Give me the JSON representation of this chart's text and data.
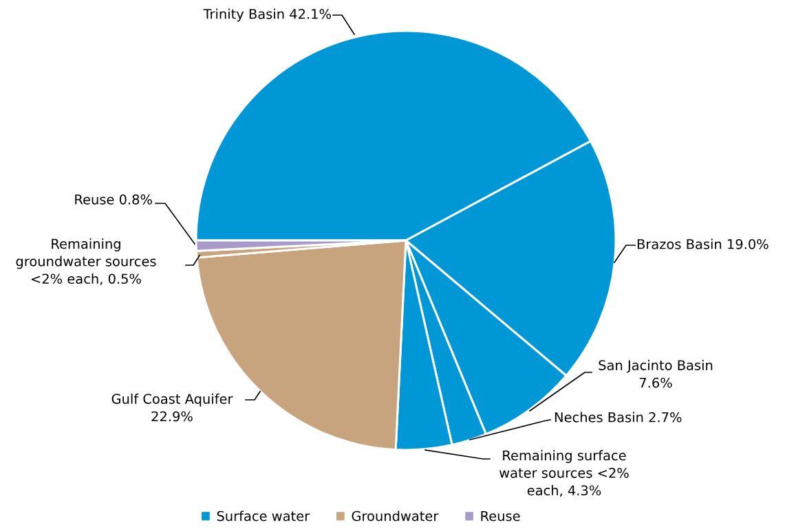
{
  "chart_data": {
    "type": "pie",
    "categories": [
      "Trinity Basin",
      "Brazos Basin",
      "San Jacinto Basin",
      "Neches Basin",
      "Remaining surface water sources <2% each",
      "Gulf Coast Aquifer",
      "Remaining groundwater sources <2% each",
      "Reuse"
    ],
    "values": [
      42.1,
      19.0,
      7.6,
      2.7,
      4.3,
      22.9,
      0.5,
      0.8
    ],
    "value_labels": [
      "42.1%",
      "19.0%",
      "7.6%",
      "2.7%",
      "4.3%",
      "22.9%",
      "0.5%",
      "0.8%"
    ],
    "colors": [
      "#0097d7",
      "#0097d7",
      "#0097d7",
      "#0097d7",
      "#0097d7",
      "#c8a47e",
      "#c8a47e",
      "#a99bc9"
    ],
    "annotations": [
      "Surface water",
      "Groundwater",
      "Reuse"
    ],
    "legend": "bottom"
  }
}
